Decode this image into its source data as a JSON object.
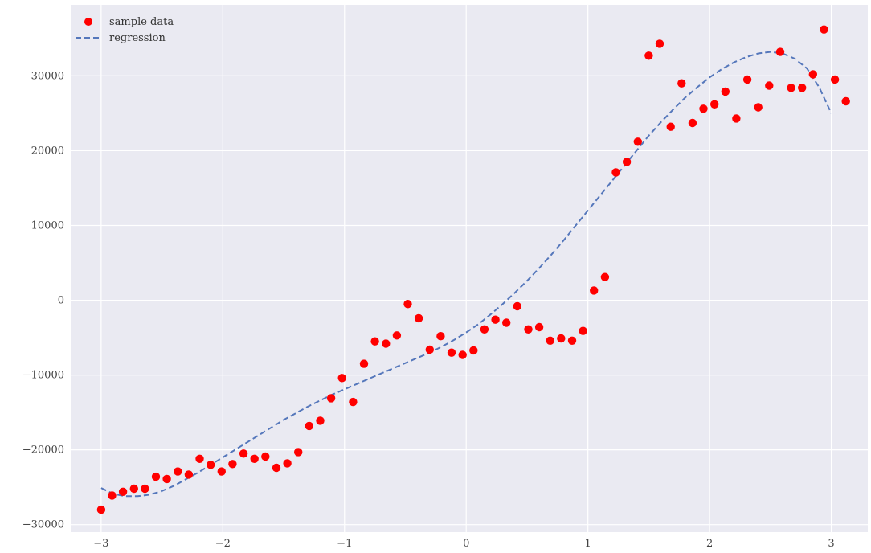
{
  "chart_data": {
    "type": "scatter",
    "title": "",
    "xlabel": "",
    "ylabel": "",
    "xlim": [
      -3.25,
      3.3
    ],
    "ylim": [
      -31000,
      39500
    ],
    "x_ticks": [
      -3,
      -2,
      -1,
      0,
      1,
      2,
      3
    ],
    "x_tick_labels": [
      "−3",
      "−2",
      "−1",
      "0",
      "1",
      "2",
      "3"
    ],
    "y_ticks": [
      -30000,
      -20000,
      -10000,
      0,
      10000,
      20000,
      30000
    ],
    "y_tick_labels": [
      "−30000",
      "−20000",
      "−10000",
      "0",
      "10000",
      "20000",
      "30000"
    ],
    "grid": true,
    "legend_position": "top-left",
    "series": [
      {
        "name": "sample data",
        "kind": "scatter",
        "color": "#ff0000",
        "points": [
          [
            -3.0,
            -28000
          ],
          [
            -2.91,
            -26100
          ],
          [
            -2.82,
            -25600
          ],
          [
            -2.73,
            -25200
          ],
          [
            -2.64,
            -25200
          ],
          [
            -2.55,
            -23600
          ],
          [
            -2.46,
            -23900
          ],
          [
            -2.37,
            -22900
          ],
          [
            -2.28,
            -23300
          ],
          [
            -2.19,
            -21200
          ],
          [
            -2.1,
            -22000
          ],
          [
            -2.01,
            -22900
          ],
          [
            -1.92,
            -21900
          ],
          [
            -1.83,
            -20500
          ],
          [
            -1.74,
            -21200
          ],
          [
            -1.65,
            -20900
          ],
          [
            -1.56,
            -22400
          ],
          [
            -1.47,
            -21800
          ],
          [
            -1.38,
            -20300
          ],
          [
            -1.29,
            -16800
          ],
          [
            -1.2,
            -16100
          ],
          [
            -1.11,
            -13100
          ],
          [
            -1.02,
            -10400
          ],
          [
            -0.93,
            -13600
          ],
          [
            -0.84,
            -8500
          ],
          [
            -0.75,
            -5500
          ],
          [
            -0.66,
            -5800
          ],
          [
            -0.57,
            -4700
          ],
          [
            -0.48,
            -500
          ],
          [
            -0.39,
            -2400
          ],
          [
            -0.3,
            -6600
          ],
          [
            -0.21,
            -4800
          ],
          [
            -0.12,
            -7000
          ],
          [
            -0.03,
            -7300
          ],
          [
            0.06,
            -6700
          ],
          [
            0.15,
            -3900
          ],
          [
            0.24,
            -2600
          ],
          [
            0.33,
            -3000
          ],
          [
            0.42,
            -800
          ],
          [
            0.51,
            -3900
          ],
          [
            0.6,
            -3600
          ],
          [
            0.69,
            -5400
          ],
          [
            0.78,
            -5100
          ],
          [
            0.87,
            -5400
          ],
          [
            0.96,
            -4100
          ],
          [
            1.05,
            1300
          ],
          [
            1.14,
            3100
          ],
          [
            1.23,
            17100
          ],
          [
            1.32,
            18500
          ],
          [
            1.41,
            21200
          ],
          [
            1.5,
            32700
          ],
          [
            1.59,
            34300
          ],
          [
            1.68,
            23200
          ],
          [
            1.77,
            29000
          ],
          [
            1.86,
            23700
          ],
          [
            1.95,
            25600
          ],
          [
            2.04,
            26200
          ],
          [
            2.13,
            27900
          ],
          [
            2.22,
            24300
          ],
          [
            2.31,
            29500
          ],
          [
            2.4,
            25800
          ],
          [
            2.49,
            28700
          ],
          [
            2.58,
            33200
          ],
          [
            2.67,
            28400
          ],
          [
            2.76,
            28400
          ],
          [
            2.85,
            30200
          ],
          [
            2.94,
            36200
          ],
          [
            3.03,
            29500
          ],
          [
            3.12,
            26600
          ]
        ]
      },
      {
        "name": "regression",
        "kind": "line",
        "style": "dashed",
        "color": "#5577bb",
        "points": [
          [
            -3.0,
            -25100
          ],
          [
            -2.9,
            -25900
          ],
          [
            -2.8,
            -26200
          ],
          [
            -2.7,
            -26200
          ],
          [
            -2.6,
            -26000
          ],
          [
            -2.5,
            -25500
          ],
          [
            -2.4,
            -24800
          ],
          [
            -2.3,
            -23900
          ],
          [
            -2.2,
            -23000
          ],
          [
            -2.1,
            -22000
          ],
          [
            -2.0,
            -21000
          ],
          [
            -1.9,
            -20000
          ],
          [
            -1.8,
            -19000
          ],
          [
            -1.7,
            -18000
          ],
          [
            -1.6,
            -17000
          ],
          [
            -1.5,
            -16000
          ],
          [
            -1.4,
            -15100
          ],
          [
            -1.3,
            -14200
          ],
          [
            -1.2,
            -13400
          ],
          [
            -1.1,
            -12600
          ],
          [
            -1.0,
            -11900
          ],
          [
            -0.9,
            -11200
          ],
          [
            -0.8,
            -10500
          ],
          [
            -0.7,
            -9800
          ],
          [
            -0.6,
            -9100
          ],
          [
            -0.5,
            -8400
          ],
          [
            -0.4,
            -7700
          ],
          [
            -0.3,
            -7000
          ],
          [
            -0.2,
            -6200
          ],
          [
            -0.1,
            -5300
          ],
          [
            0.0,
            -4300
          ],
          [
            0.1,
            -3200
          ],
          [
            0.2,
            -1900
          ],
          [
            0.3,
            -500
          ],
          [
            0.4,
            1000
          ],
          [
            0.5,
            2600
          ],
          [
            0.6,
            4300
          ],
          [
            0.7,
            6100
          ],
          [
            0.8,
            8000
          ],
          [
            0.9,
            10000
          ],
          [
            1.0,
            12000
          ],
          [
            1.1,
            14000
          ],
          [
            1.2,
            16000
          ],
          [
            1.3,
            18000
          ],
          [
            1.4,
            20000
          ],
          [
            1.5,
            22000
          ],
          [
            1.6,
            23800
          ],
          [
            1.7,
            25500
          ],
          [
            1.8,
            27100
          ],
          [
            1.9,
            28500
          ],
          [
            2.0,
            29800
          ],
          [
            2.1,
            30900
          ],
          [
            2.2,
            31800
          ],
          [
            2.3,
            32500
          ],
          [
            2.4,
            33000
          ],
          [
            2.5,
            33200
          ],
          [
            2.6,
            33000
          ],
          [
            2.7,
            32300
          ],
          [
            2.8,
            31000
          ],
          [
            2.9,
            28500
          ],
          [
            3.0,
            25000
          ]
        ]
      }
    ]
  }
}
